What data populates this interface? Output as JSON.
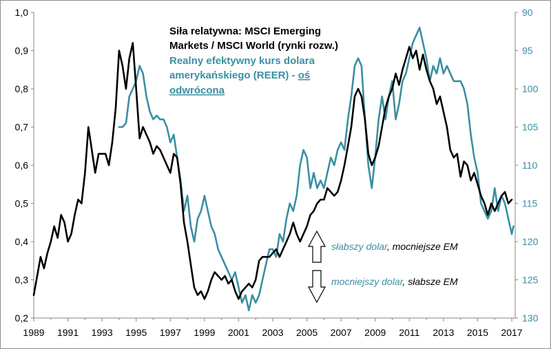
{
  "chart_data": {
    "type": "line",
    "title": "",
    "xlabel": "",
    "ylabel": "",
    "x_tick_labels": [
      "1989",
      "1991",
      "1993",
      "1995",
      "1997",
      "1999",
      "2001",
      "2003",
      "2005",
      "2007",
      "2009",
      "2011",
      "2013",
      "2015",
      "2017"
    ],
    "y_left": {
      "range": [
        0.2,
        1.0
      ],
      "tick_labels": [
        "0,2",
        "0,3",
        "0,4",
        "0,5",
        "0,6",
        "0,7",
        "0,8",
        "0,9",
        "1,0"
      ]
    },
    "y_right": {
      "range": [
        90,
        130
      ],
      "inverted": true,
      "tick_labels": [
        "90",
        "95",
        "100",
        "105",
        "110",
        "115",
        "120",
        "125",
        "130"
      ]
    },
    "grid": false,
    "legend_position": "top-center",
    "colors": {
      "series_msci": "#000000",
      "series_reer": "#3a8fa3"
    },
    "series": [
      {
        "name": "Siła relatywna: MSCI Emerging Markets / MSCI World (rynki rozw.)",
        "axis": "left",
        "legend_lines": [
          "Siła relatywna: MSCI Emerging",
          "Markets / MSCI World (rynki rozw.)"
        ],
        "points": [
          [
            1989.0,
            0.26
          ],
          [
            1989.2,
            0.31
          ],
          [
            1989.4,
            0.36
          ],
          [
            1989.6,
            0.33
          ],
          [
            1989.8,
            0.37
          ],
          [
            1990.0,
            0.4
          ],
          [
            1990.2,
            0.44
          ],
          [
            1990.4,
            0.41
          ],
          [
            1990.6,
            0.47
          ],
          [
            1990.8,
            0.45
          ],
          [
            1991.0,
            0.4
          ],
          [
            1991.2,
            0.42
          ],
          [
            1991.4,
            0.47
          ],
          [
            1991.6,
            0.51
          ],
          [
            1991.8,
            0.5
          ],
          [
            1992.0,
            0.58
          ],
          [
            1992.2,
            0.7
          ],
          [
            1992.4,
            0.64
          ],
          [
            1992.6,
            0.58
          ],
          [
            1992.8,
            0.63
          ],
          [
            1993.0,
            0.63
          ],
          [
            1993.2,
            0.63
          ],
          [
            1993.4,
            0.6
          ],
          [
            1993.6,
            0.66
          ],
          [
            1993.8,
            0.75
          ],
          [
            1994.0,
            0.9
          ],
          [
            1994.2,
            0.86
          ],
          [
            1994.4,
            0.8
          ],
          [
            1994.6,
            0.88
          ],
          [
            1994.8,
            0.92
          ],
          [
            1995.0,
            0.8
          ],
          [
            1995.2,
            0.67
          ],
          [
            1995.4,
            0.7
          ],
          [
            1995.6,
            0.68
          ],
          [
            1995.8,
            0.66
          ],
          [
            1996.0,
            0.63
          ],
          [
            1996.2,
            0.65
          ],
          [
            1996.4,
            0.64
          ],
          [
            1996.6,
            0.62
          ],
          [
            1996.8,
            0.6
          ],
          [
            1997.0,
            0.58
          ],
          [
            1997.2,
            0.63
          ],
          [
            1997.4,
            0.62
          ],
          [
            1997.6,
            0.55
          ],
          [
            1997.8,
            0.45
          ],
          [
            1998.0,
            0.4
          ],
          [
            1998.2,
            0.34
          ],
          [
            1998.4,
            0.28
          ],
          [
            1998.6,
            0.26
          ],
          [
            1998.8,
            0.27
          ],
          [
            1999.0,
            0.25
          ],
          [
            1999.2,
            0.27
          ],
          [
            1999.4,
            0.3
          ],
          [
            1999.6,
            0.32
          ],
          [
            1999.8,
            0.31
          ],
          [
            2000.0,
            0.3
          ],
          [
            2000.2,
            0.31
          ],
          [
            2000.4,
            0.29
          ],
          [
            2000.6,
            0.3
          ],
          [
            2000.8,
            0.27
          ],
          [
            2001.0,
            0.25
          ],
          [
            2001.2,
            0.27
          ],
          [
            2001.4,
            0.28
          ],
          [
            2001.6,
            0.29
          ],
          [
            2001.8,
            0.28
          ],
          [
            2002.0,
            0.3
          ],
          [
            2002.2,
            0.35
          ],
          [
            2002.4,
            0.36
          ],
          [
            2002.6,
            0.36
          ],
          [
            2002.8,
            0.36
          ],
          [
            2003.0,
            0.37
          ],
          [
            2003.2,
            0.38
          ],
          [
            2003.4,
            0.36
          ],
          [
            2003.6,
            0.38
          ],
          [
            2003.8,
            0.4
          ],
          [
            2004.0,
            0.42
          ],
          [
            2004.2,
            0.45
          ],
          [
            2004.4,
            0.42
          ],
          [
            2004.6,
            0.4
          ],
          [
            2004.8,
            0.42
          ],
          [
            2005.0,
            0.44
          ],
          [
            2005.2,
            0.47
          ],
          [
            2005.4,
            0.48
          ],
          [
            2005.6,
            0.5
          ],
          [
            2005.8,
            0.51
          ],
          [
            2006.0,
            0.51
          ],
          [
            2006.2,
            0.54
          ],
          [
            2006.4,
            0.53
          ],
          [
            2006.6,
            0.52
          ],
          [
            2006.8,
            0.53
          ],
          [
            2007.0,
            0.56
          ],
          [
            2007.2,
            0.6
          ],
          [
            2007.4,
            0.65
          ],
          [
            2007.6,
            0.7
          ],
          [
            2007.8,
            0.78
          ],
          [
            2008.0,
            0.8
          ],
          [
            2008.2,
            0.78
          ],
          [
            2008.4,
            0.72
          ],
          [
            2008.6,
            0.63
          ],
          [
            2008.8,
            0.6
          ],
          [
            2009.0,
            0.62
          ],
          [
            2009.2,
            0.65
          ],
          [
            2009.4,
            0.7
          ],
          [
            2009.6,
            0.75
          ],
          [
            2009.8,
            0.78
          ],
          [
            2010.0,
            0.8
          ],
          [
            2010.2,
            0.84
          ],
          [
            2010.4,
            0.81
          ],
          [
            2010.6,
            0.85
          ],
          [
            2010.8,
            0.88
          ],
          [
            2011.0,
            0.91
          ],
          [
            2011.2,
            0.88
          ],
          [
            2011.4,
            0.9
          ],
          [
            2011.6,
            0.85
          ],
          [
            2011.8,
            0.89
          ],
          [
            2012.0,
            0.85
          ],
          [
            2012.2,
            0.82
          ],
          [
            2012.4,
            0.8
          ],
          [
            2012.6,
            0.76
          ],
          [
            2012.8,
            0.78
          ],
          [
            2013.0,
            0.74
          ],
          [
            2013.2,
            0.7
          ],
          [
            2013.4,
            0.64
          ],
          [
            2013.6,
            0.62
          ],
          [
            2013.8,
            0.63
          ],
          [
            2014.0,
            0.57
          ],
          [
            2014.2,
            0.61
          ],
          [
            2014.4,
            0.6
          ],
          [
            2014.6,
            0.56
          ],
          [
            2014.8,
            0.58
          ],
          [
            2015.0,
            0.55
          ],
          [
            2015.2,
            0.52
          ],
          [
            2015.4,
            0.5
          ],
          [
            2015.6,
            0.47
          ],
          [
            2015.8,
            0.5
          ],
          [
            2016.0,
            0.48
          ],
          [
            2016.2,
            0.5
          ],
          [
            2016.4,
            0.52
          ],
          [
            2016.6,
            0.53
          ],
          [
            2016.8,
            0.5
          ],
          [
            2017.0,
            0.51
          ]
        ]
      },
      {
        "name": "Realny efektywny kurs dolara amerykańskiego (REER) - oś odwrócona",
        "axis": "right",
        "legend_lines": [
          "Realny efektywny kurs dolara",
          "amerykańskiego (REER) - "
        ],
        "legend_underlined": "oś",
        "legend_underlined_2": "odwrócona",
        "points": [
          [
            1994.0,
            105
          ],
          [
            1994.2,
            105
          ],
          [
            1994.4,
            104.5
          ],
          [
            1994.6,
            101
          ],
          [
            1994.8,
            100
          ],
          [
            1995.0,
            99
          ],
          [
            1995.2,
            97
          ],
          [
            1995.4,
            98
          ],
          [
            1995.6,
            101
          ],
          [
            1995.8,
            103
          ],
          [
            1996.0,
            104
          ],
          [
            1996.2,
            103.5
          ],
          [
            1996.4,
            104
          ],
          [
            1996.6,
            104
          ],
          [
            1996.8,
            105
          ],
          [
            1997.0,
            107
          ],
          [
            1997.2,
            106
          ],
          [
            1997.4,
            109
          ],
          [
            1997.6,
            112
          ],
          [
            1997.8,
            116
          ],
          [
            1998.0,
            114
          ],
          [
            1998.2,
            118
          ],
          [
            1998.4,
            120
          ],
          [
            1998.6,
            117
          ],
          [
            1998.8,
            116
          ],
          [
            1999.0,
            114
          ],
          [
            1999.2,
            116
          ],
          [
            1999.4,
            118
          ],
          [
            1999.6,
            119
          ],
          [
            1999.8,
            121
          ],
          [
            2000.0,
            122
          ],
          [
            2000.2,
            123
          ],
          [
            2000.4,
            124
          ],
          [
            2000.6,
            125
          ],
          [
            2000.8,
            124
          ],
          [
            2001.0,
            126
          ],
          [
            2001.2,
            128
          ],
          [
            2001.4,
            127
          ],
          [
            2001.6,
            129
          ],
          [
            2001.8,
            127
          ],
          [
            2002.0,
            128
          ],
          [
            2002.2,
            127
          ],
          [
            2002.4,
            125
          ],
          [
            2002.6,
            123
          ],
          [
            2002.8,
            121
          ],
          [
            2003.0,
            121
          ],
          [
            2003.2,
            122
          ],
          [
            2003.4,
            119
          ],
          [
            2003.6,
            120
          ],
          [
            2003.8,
            117
          ],
          [
            2004.0,
            115
          ],
          [
            2004.2,
            116
          ],
          [
            2004.4,
            114
          ],
          [
            2004.6,
            110
          ],
          [
            2004.8,
            108
          ],
          [
            2005.0,
            109
          ],
          [
            2005.2,
            113
          ],
          [
            2005.4,
            111
          ],
          [
            2005.6,
            113
          ],
          [
            2005.8,
            112
          ],
          [
            2006.0,
            113
          ],
          [
            2006.2,
            111
          ],
          [
            2006.4,
            109
          ],
          [
            2006.6,
            110
          ],
          [
            2006.8,
            108
          ],
          [
            2007.0,
            107
          ],
          [
            2007.2,
            108
          ],
          [
            2007.4,
            104
          ],
          [
            2007.6,
            101
          ],
          [
            2007.8,
            97
          ],
          [
            2008.0,
            96
          ],
          [
            2008.2,
            97
          ],
          [
            2008.4,
            104
          ],
          [
            2008.6,
            110
          ],
          [
            2008.8,
            113
          ],
          [
            2009.0,
            109
          ],
          [
            2009.2,
            104
          ],
          [
            2009.4,
            101
          ],
          [
            2009.6,
            104
          ],
          [
            2009.8,
            101
          ],
          [
            2010.0,
            99
          ],
          [
            2010.2,
            104
          ],
          [
            2010.4,
            102
          ],
          [
            2010.6,
            99
          ],
          [
            2010.8,
            98
          ],
          [
            2011.0,
            96
          ],
          [
            2011.2,
            94
          ],
          [
            2011.4,
            93
          ],
          [
            2011.6,
            92
          ],
          [
            2011.8,
            94
          ],
          [
            2012.0,
            96
          ],
          [
            2012.2,
            99
          ],
          [
            2012.4,
            97
          ],
          [
            2012.6,
            98
          ],
          [
            2012.8,
            96
          ],
          [
            2013.0,
            98
          ],
          [
            2013.2,
            97
          ],
          [
            2013.4,
            98
          ],
          [
            2013.6,
            99
          ],
          [
            2013.8,
            99
          ],
          [
            2014.0,
            99
          ],
          [
            2014.2,
            100
          ],
          [
            2014.4,
            102
          ],
          [
            2014.6,
            106
          ],
          [
            2014.8,
            109
          ],
          [
            2015.0,
            111
          ],
          [
            2015.2,
            115
          ],
          [
            2015.4,
            116
          ],
          [
            2015.6,
            117
          ],
          [
            2015.8,
            116
          ],
          [
            2016.0,
            113
          ],
          [
            2016.2,
            116
          ],
          [
            2016.4,
            114
          ],
          [
            2016.6,
            115
          ],
          [
            2016.8,
            117
          ],
          [
            2017.0,
            119
          ],
          [
            2017.1,
            118
          ]
        ]
      }
    ],
    "annotations": [
      {
        "parts": [
          [
            "słabszy dolar",
            "series_reer"
          ],
          [
            ", ",
            "series_msci"
          ],
          [
            "mocniejsze EM",
            "series_msci"
          ]
        ],
        "arrow": "up"
      },
      {
        "parts": [
          [
            "mocniejszy dolar",
            "series_reer"
          ],
          [
            ", ",
            "series_msci"
          ],
          [
            "słabsze EM",
            "series_msci"
          ]
        ],
        "arrow": "down"
      }
    ]
  }
}
